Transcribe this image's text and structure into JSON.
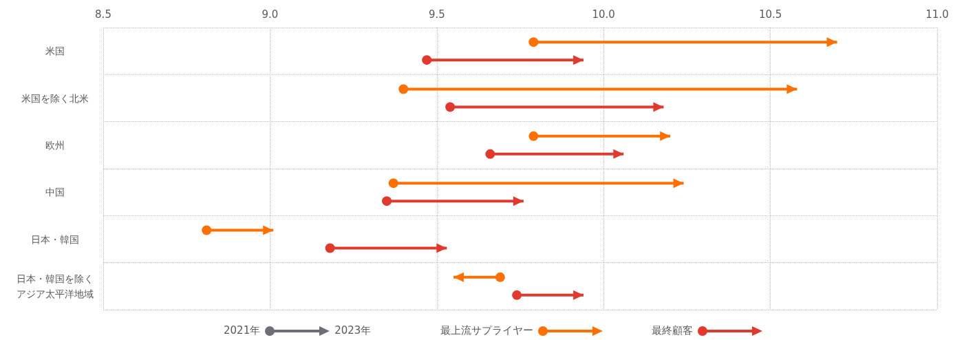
{
  "chart_data": {
    "type": "bar",
    "orientation": "horizontal",
    "marker": "circle",
    "categories": [
      "米国",
      "米国を除く北米",
      "欧州",
      "中国",
      "日本・韓国",
      "日本・韓国を除くアジア太平洋地域"
    ],
    "series": [
      {
        "name": "最上流サプライヤー",
        "color": "#ff7000",
        "base": [
          9.79,
          9.4,
          9.79,
          9.37,
          8.81,
          9.69
        ],
        "values": [
          0.91,
          1.18,
          0.41,
          0.87,
          0.2,
          -0.14
        ]
      },
      {
        "name": "最終顧客",
        "color": "#e03a2e",
        "base": [
          9.47,
          9.54,
          9.66,
          9.35,
          9.18,
          9.74
        ],
        "values": [
          0.47,
          0.64,
          0.4,
          0.41,
          0.35,
          0.2
        ]
      }
    ],
    "xlim": [
      8.5,
      11
    ],
    "xticks": [
      8.5,
      {
        "value": 9,
        "label": "9.0"
      },
      9.5,
      {
        "value": 10,
        "label": "10.0"
      },
      10.5,
      {
        "value": 11,
        "label": "11.0"
      }
    ],
    "grid": true,
    "legend": "bottom",
    "annotations": [
      "2021年",
      "2023年"
    ]
  }
}
